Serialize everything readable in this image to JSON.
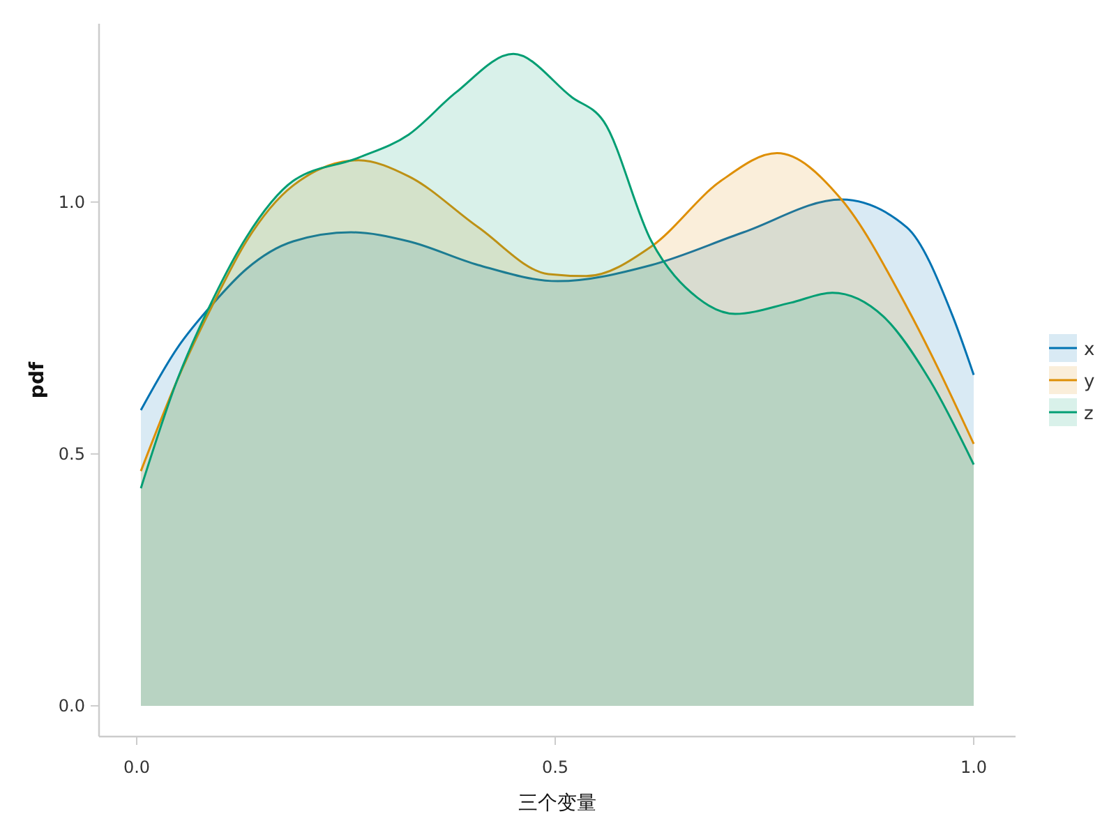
{
  "chart_data": {
    "type": "area",
    "xlabel": "三个变量",
    "ylabel": "pdf",
    "legend": "right",
    "xlim": [
      -0.045,
      1.05
    ],
    "ylim": [
      -0.061,
      1.354
    ],
    "xticks": [
      {
        "value": 0,
        "label": "0.0"
      },
      {
        "value": 0.5,
        "label": "0.5"
      },
      {
        "value": 1,
        "label": "1.0"
      }
    ],
    "yticks": [
      {
        "value": 0,
        "label": "0.0"
      },
      {
        "value": 0.5,
        "label": "0.5"
      },
      {
        "value": 1,
        "label": "1.0"
      }
    ],
    "series": [
      {
        "name": "x",
        "color": "#0173b2",
        "x": [
          0.005,
          0.048,
          0.092,
          0.131,
          0.187,
          0.256,
          0.325,
          0.408,
          0.503,
          0.615,
          0.725,
          0.842,
          0.92,
          0.975,
          1.0
        ],
        "values": [
          0.587,
          0.709,
          0.8,
          0.867,
          0.922,
          0.94,
          0.922,
          0.875,
          0.843,
          0.875,
          0.94,
          1.005,
          0.95,
          0.773,
          0.657
        ]
      },
      {
        "name": "y",
        "color": "#de8f05",
        "x": [
          0.005,
          0.048,
          0.092,
          0.131,
          0.187,
          0.265,
          0.325,
          0.408,
          0.492,
          0.537,
          0.615,
          0.698,
          0.765,
          0.842,
          0.92,
          1.0
        ],
        "values": [
          0.466,
          0.645,
          0.8,
          0.922,
          1.033,
          1.083,
          1.051,
          0.95,
          0.857,
          0.853,
          0.912,
          1.042,
          1.097,
          1.005,
          0.792,
          0.52
        ]
      },
      {
        "name": "z",
        "color": "#029e73",
        "x": [
          0.005,
          0.048,
          0.092,
          0.131,
          0.187,
          0.265,
          0.325,
          0.381,
          0.45,
          0.52,
          0.558,
          0.615,
          0.67,
          0.715,
          0.781,
          0.831,
          0.892,
          0.948,
          1.0
        ],
        "values": [
          0.432,
          0.645,
          0.81,
          0.93,
          1.042,
          1.088,
          1.134,
          1.217,
          1.294,
          1.208,
          1.16,
          0.922,
          0.81,
          0.778,
          0.8,
          0.82,
          0.773,
          0.645,
          0.479
        ]
      }
    ]
  }
}
